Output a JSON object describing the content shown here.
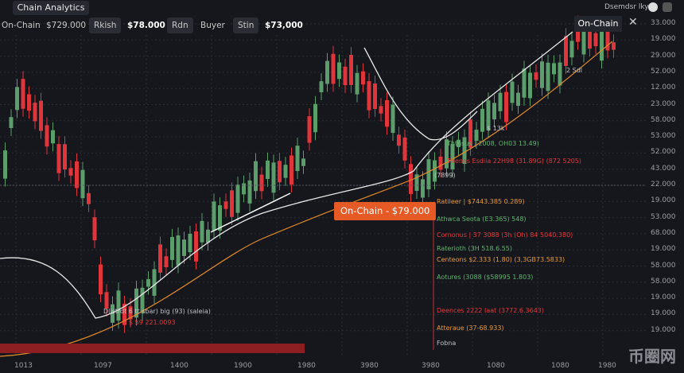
{
  "header": {
    "tab": "Chain Analytics",
    "account": "Dsemdsr lky"
  },
  "toolbar": [
    "On-Chain",
    "$729.000",
    "Rkish",
    "$78.000",
    "Rdn",
    "Buyer",
    "Stin",
    "$73,000"
  ],
  "panel": {
    "label": "On-Chain"
  },
  "y_axis": [
    "33.000",
    "19.000",
    "29.000",
    "52.000",
    "12.000",
    "23.000",
    "58.000",
    "53.000",
    "52.000",
    "43.000",
    "22.000",
    "19.000",
    "53.000",
    "68.000",
    "19.000",
    "58.000",
    "58.000",
    "19.000",
    "19.000",
    "19.000"
  ],
  "x_axis": [
    "1013",
    "1097",
    "1400",
    "1900",
    "1980",
    "3980",
    "3980",
    "1080",
    "1080",
    "1980"
  ],
  "callout": "On-Chain - $79.000",
  "markers": [
    "2 Sdl",
    "$ 13k",
    "(7899)"
  ],
  "annotations": [
    {
      "text": "Thtnsus | 2008, OH03 13.49)",
      "tone": "g"
    },
    {
      "text": "Thenes Esdiia 22H98 (31.89G) (872 5205)",
      "tone": "r"
    },
    {
      "text": "Ratileer | $7443.385 0.289)",
      "tone": "o"
    },
    {
      "text": "Athwca Seota (E3.365) 548)",
      "tone": "g"
    },
    {
      "text": "Cornonus | 37 3088 (3h (Oh) 84 5040.380)",
      "tone": "r"
    },
    {
      "text": "Raterioth (3H 518.6.55)",
      "tone": "g"
    },
    {
      "text": "Centeons $2.333 (1.80) (3,3GB73.5833)",
      "tone": "o"
    },
    {
      "text": "Aotures (3088 ($58995 1.803)",
      "tone": "g"
    },
    {
      "text": "Deences 2222 Iaat (3772.6.3643)",
      "tone": "r"
    },
    {
      "text": "Atteraue (37-68.933)",
      "tone": "o"
    },
    {
      "text": "Fobna",
      "tone": "w"
    }
  ],
  "lower_notes": [
    "Dlistrdt 6 tt sbar) big (93) (saleia)",
    "$ 59 221.0093"
  ],
  "watermark": "币圈网"
}
